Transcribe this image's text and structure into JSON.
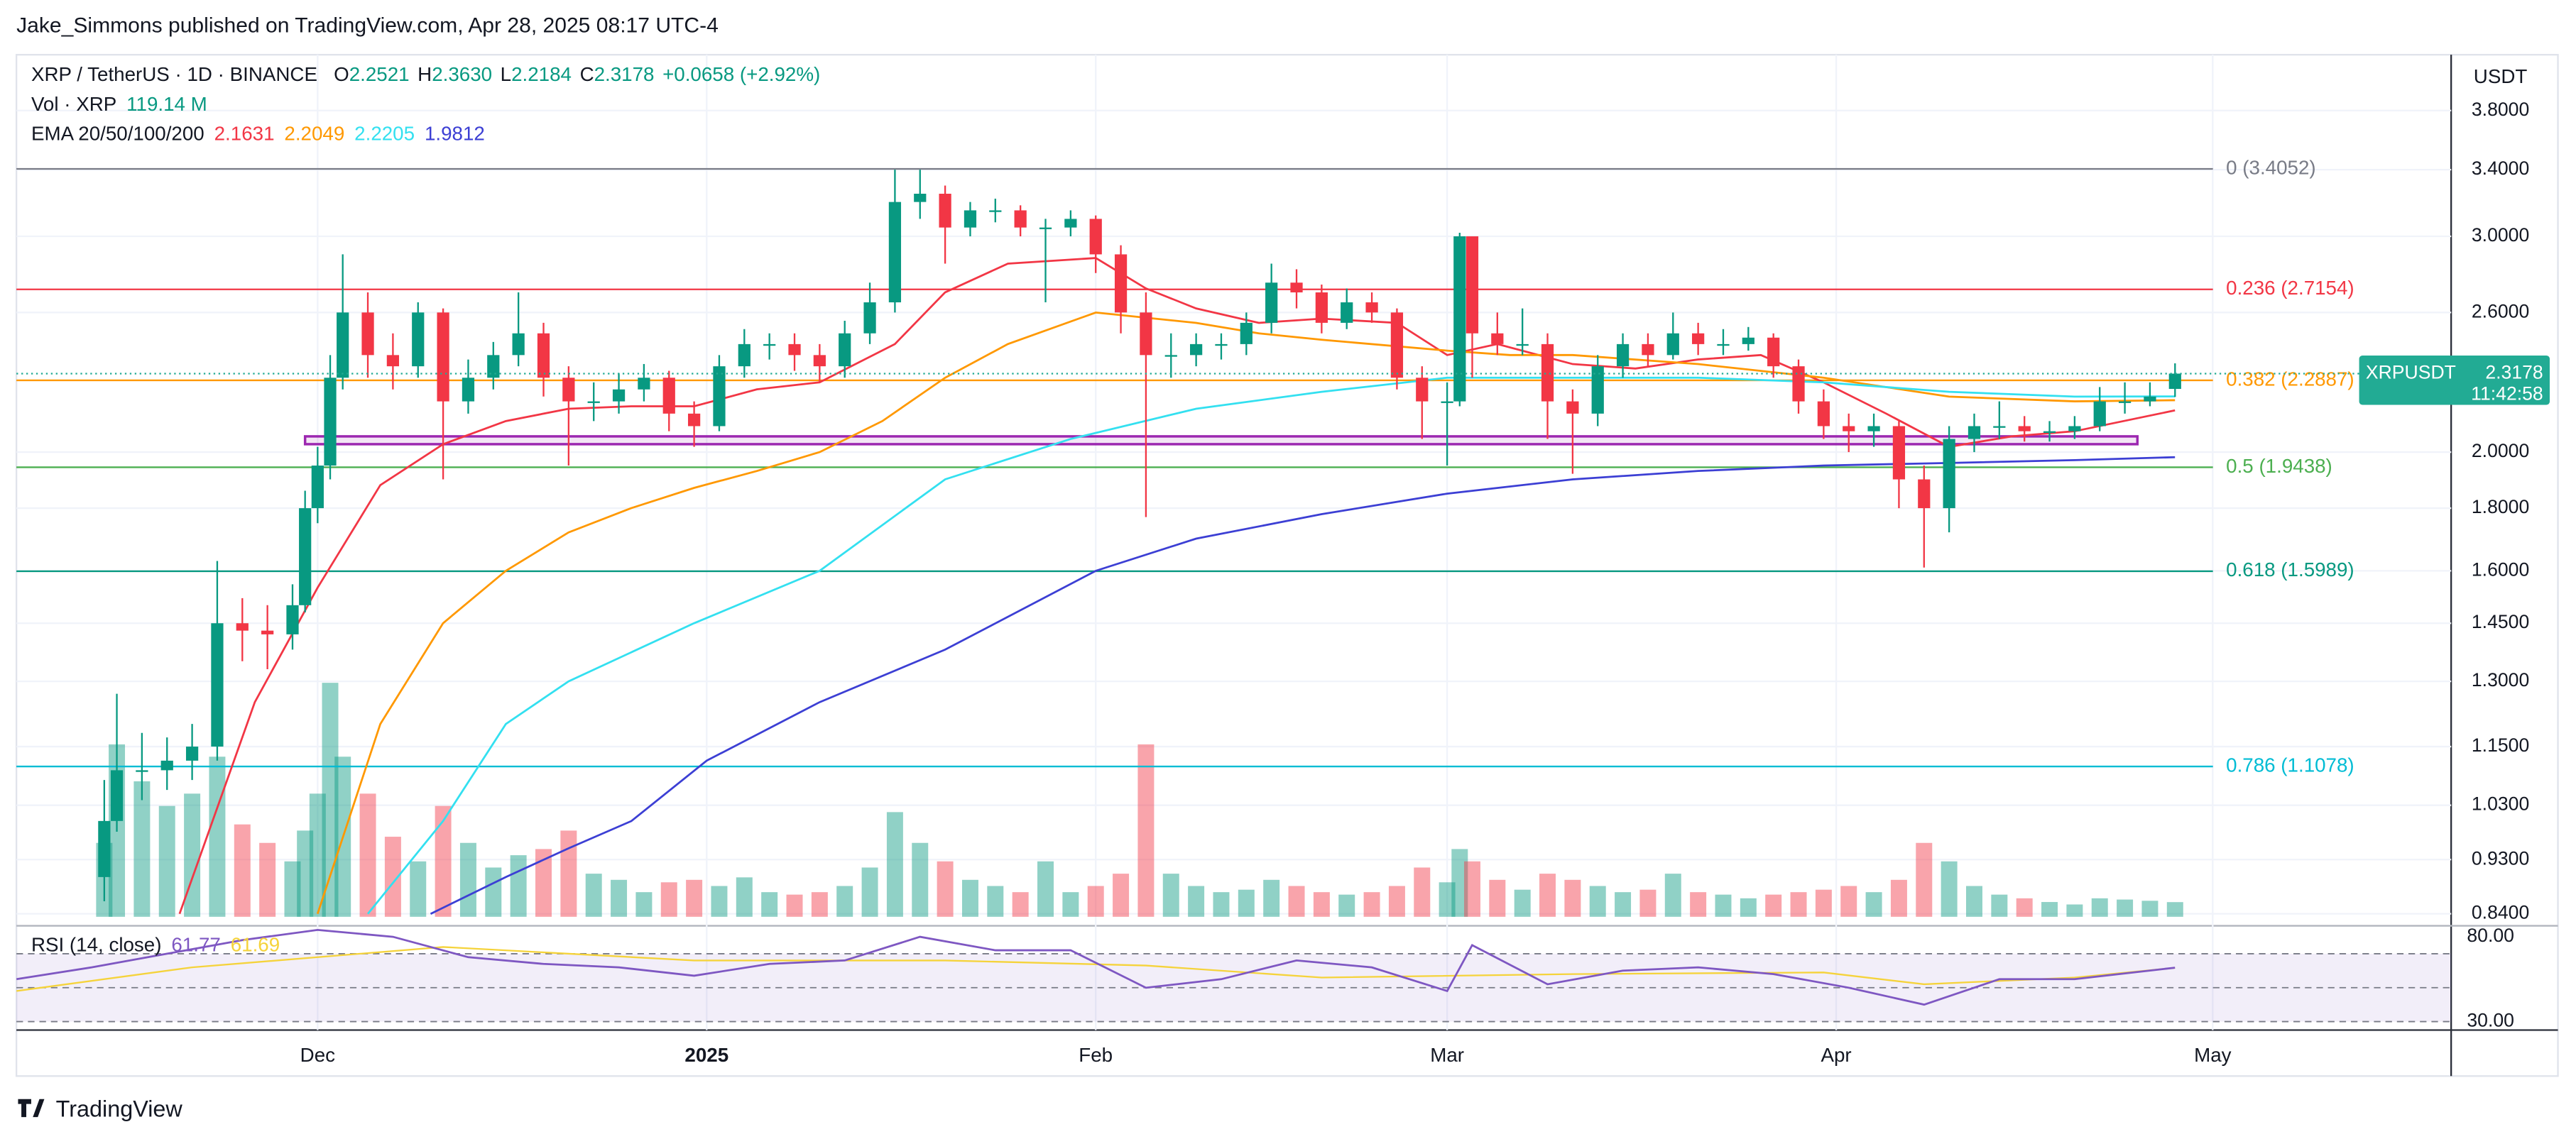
{
  "chart_data": {
    "type": "candlestick",
    "header": "Jake_Simmons published on TradingView.com, Apr 28, 2025 08:17 UTC-4",
    "symbol": "XRP / TetherUS · 1D · BINANCE",
    "ohlc_legend": [
      {
        "label": "O",
        "value": "2.2521"
      },
      {
        "label": "H",
        "value": "2.3630"
      },
      {
        "label": "L",
        "value": "2.2184"
      },
      {
        "label": "C",
        "value": "2.3178"
      }
    ],
    "change": "+0.0658 (+2.92%)",
    "volume_legend": {
      "label": "Vol · XRP",
      "value": "119.14 M"
    },
    "currency": "USDT",
    "logo": "TradingView",
    "up_color": "#089981",
    "down_color": "#f23645",
    "log_scale": true,
    "grid": true,
    "xlim": [
      6,
      200
    ],
    "xticks": [
      {
        "value": 30,
        "label": "Dec"
      },
      {
        "value": 61,
        "label": "2025"
      },
      {
        "value": 92,
        "label": "Feb"
      },
      {
        "value": 120,
        "label": "Mar"
      },
      {
        "value": 151,
        "label": "Apr"
      },
      {
        "value": 181,
        "label": "May"
      }
    ],
    "ylim": [
      0.825,
      4.22
    ],
    "yticks": [
      {
        "value": 0.84,
        "label": "0.8400"
      },
      {
        "value": 0.93,
        "label": "0.9300"
      },
      {
        "value": 1.03,
        "label": "1.0300"
      },
      {
        "value": 1.15,
        "label": "1.1500"
      },
      {
        "value": 1.3,
        "label": "1.3000"
      },
      {
        "value": 1.45,
        "label": "1.4500"
      },
      {
        "value": 1.6,
        "label": "1.6000"
      },
      {
        "value": 1.8,
        "label": "1.8000"
      },
      {
        "value": 2,
        "label": "2.0000"
      },
      {
        "value": 2.6,
        "label": "2.6000"
      },
      {
        "value": 3,
        "label": "3.0000"
      },
      {
        "value": 3.4,
        "label": "3.4000"
      },
      {
        "value": 3.8,
        "label": "3.8000"
      }
    ],
    "x": [
      13,
      14,
      16,
      18,
      20,
      22,
      24,
      26,
      28,
      29,
      30,
      31,
      32,
      34,
      36,
      38,
      40,
      42,
      44,
      46,
      48,
      50,
      52,
      54,
      56,
      58,
      60,
      62,
      64,
      66,
      68,
      70,
      72,
      74,
      76,
      78,
      80,
      82,
      84,
      86,
      88,
      90,
      92,
      94,
      96,
      98,
      100,
      102,
      104,
      106,
      108,
      110,
      112,
      114,
      116,
      118,
      120,
      121,
      122,
      124,
      126,
      128,
      130,
      132,
      134,
      136,
      138,
      140,
      142,
      144,
      146,
      148,
      150,
      152,
      154,
      156,
      158,
      160,
      162,
      164,
      166,
      168,
      170,
      172,
      174,
      176,
      178
    ],
    "open": [
      0.9,
      1.0,
      1.1,
      1.1,
      1.12,
      1.15,
      1.45,
      1.43,
      1.42,
      1.5,
      1.8,
      1.95,
      2.3,
      2.6,
      2.4,
      2.35,
      2.6,
      2.2,
      2.3,
      2.4,
      2.5,
      2.3,
      2.2,
      2.2,
      2.25,
      2.3,
      2.15,
      2.1,
      2.35,
      2.45,
      2.45,
      2.4,
      2.35,
      2.5,
      2.65,
      3.2,
      3.25,
      3.05,
      3.15,
      3.15,
      3.05,
      3.05,
      3.1,
      2.9,
      2.6,
      2.4,
      2.4,
      2.45,
      2.45,
      2.55,
      2.75,
      2.7,
      2.55,
      2.65,
      2.6,
      2.3,
      2.2,
      2.2,
      3.0,
      2.5,
      2.45,
      2.45,
      2.2,
      2.15,
      2.35,
      2.45,
      2.4,
      2.5,
      2.45,
      2.45,
      2.48,
      2.35,
      2.2,
      2.1,
      2.08,
      2.1,
      1.9,
      1.8,
      2.05,
      2.1,
      2.1,
      2.08,
      2.08,
      2.1,
      2.2,
      2.2,
      2.2521
    ],
    "high": [
      1.08,
      1.27,
      1.18,
      1.17,
      1.2,
      1.63,
      1.52,
      1.5,
      1.56,
      1.86,
      2.02,
      2.4,
      2.9,
      2.7,
      2.5,
      2.65,
      2.62,
      2.38,
      2.46,
      2.7,
      2.55,
      2.35,
      2.28,
      2.32,
      2.36,
      2.33,
      2.2,
      2.4,
      2.52,
      2.5,
      2.5,
      2.45,
      2.56,
      2.75,
      3.4,
      3.4,
      3.3,
      3.2,
      3.22,
      3.18,
      3.1,
      3.15,
      3.12,
      2.95,
      2.7,
      2.5,
      2.5,
      2.5,
      2.6,
      2.85,
      2.82,
      2.74,
      2.72,
      2.7,
      2.62,
      2.35,
      2.28,
      3.02,
      3.0,
      2.6,
      2.62,
      2.5,
      2.25,
      2.4,
      2.5,
      2.5,
      2.6,
      2.55,
      2.52,
      2.53,
      2.5,
      2.38,
      2.25,
      2.15,
      2.15,
      2.12,
      1.95,
      2.1,
      2.15,
      2.2,
      2.14,
      2.12,
      2.14,
      2.26,
      2.28,
      2.28,
      2.363
    ],
    "low": [
      0.86,
      0.98,
      1.04,
      1.06,
      1.08,
      1.12,
      1.35,
      1.33,
      1.38,
      1.48,
      1.75,
      1.9,
      2.25,
      2.3,
      2.25,
      2.3,
      1.9,
      2.15,
      2.25,
      2.35,
      2.22,
      1.95,
      2.12,
      2.15,
      2.2,
      2.08,
      2.02,
      2.08,
      2.3,
      2.38,
      2.33,
      2.28,
      2.3,
      2.45,
      2.6,
      3.1,
      2.85,
      3.0,
      3.08,
      3.0,
      2.65,
      3.0,
      2.8,
      2.5,
      1.77,
      2.3,
      2.35,
      2.38,
      2.4,
      2.5,
      2.62,
      2.5,
      2.52,
      2.55,
      2.25,
      2.05,
      1.95,
      2.18,
      2.3,
      2.4,
      2.4,
      2.05,
      1.92,
      2.1,
      2.3,
      2.35,
      2.38,
      2.4,
      2.4,
      2.42,
      2.3,
      2.15,
      2.05,
      2.0,
      2.02,
      1.8,
      1.61,
      1.72,
      2.0,
      2.05,
      2.04,
      2.04,
      2.05,
      2.08,
      2.15,
      2.18,
      2.2184
    ],
    "close": [
      1.0,
      1.1,
      1.1,
      1.12,
      1.15,
      1.45,
      1.43,
      1.42,
      1.5,
      1.8,
      1.95,
      2.3,
      2.6,
      2.4,
      2.35,
      2.6,
      2.2,
      2.3,
      2.4,
      2.5,
      2.3,
      2.2,
      2.2,
      2.25,
      2.3,
      2.15,
      2.1,
      2.35,
      2.45,
      2.45,
      2.4,
      2.35,
      2.5,
      2.65,
      3.2,
      3.25,
      3.05,
      3.15,
      3.15,
      3.05,
      3.05,
      3.1,
      2.9,
      2.6,
      2.4,
      2.4,
      2.45,
      2.45,
      2.55,
      2.75,
      2.7,
      2.55,
      2.65,
      2.6,
      2.3,
      2.2,
      2.2,
      3.0,
      2.5,
      2.45,
      2.45,
      2.2,
      2.15,
      2.35,
      2.45,
      2.4,
      2.5,
      2.45,
      2.45,
      2.48,
      2.35,
      2.2,
      2.1,
      2.08,
      2.1,
      1.9,
      1.8,
      2.05,
      2.1,
      2.1,
      2.08,
      2.08,
      2.1,
      2.2,
      2.2,
      2.22,
      2.3178
    ],
    "volume": [
      600,
      1400,
      1100,
      900,
      1000,
      1300,
      750,
      600,
      450,
      700,
      1000,
      1900,
      1300,
      1000,
      650,
      450,
      900,
      600,
      400,
      500,
      550,
      700,
      350,
      300,
      200,
      280,
      300,
      250,
      320,
      200,
      180,
      200,
      250,
      400,
      850,
      600,
      450,
      300,
      250,
      200,
      450,
      200,
      250,
      350,
      1400,
      350,
      250,
      200,
      220,
      300,
      250,
      200,
      180,
      200,
      250,
      400,
      280,
      550,
      450,
      300,
      220,
      350,
      300,
      250,
      200,
      220,
      350,
      200,
      180,
      150,
      180,
      200,
      220,
      250,
      200,
      300,
      600,
      450,
      250,
      180,
      150,
      120,
      100,
      150,
      140,
      130,
      119.14
    ],
    "volume_lim": [
      0,
      2000
    ],
    "emas": {
      "label": "EMA 20/50/100/200",
      "series": [
        {
          "color": "#f23645",
          "value_label": "2.1631",
          "x": [
            19,
            25,
            30,
            35,
            40,
            45,
            50,
            55,
            60,
            65,
            70,
            76,
            80,
            85,
            92,
            96,
            100,
            105,
            110,
            116,
            120,
            124,
            130,
            135,
            140,
            145,
            150,
            155,
            160,
            165,
            170,
            178
          ],
          "values": [
            0.84,
            1.25,
            1.55,
            1.88,
            2.03,
            2.12,
            2.17,
            2.18,
            2.18,
            2.25,
            2.28,
            2.45,
            2.7,
            2.85,
            2.88,
            2.72,
            2.62,
            2.55,
            2.57,
            2.55,
            2.4,
            2.45,
            2.36,
            2.34,
            2.38,
            2.4,
            2.28,
            2.15,
            2.02,
            2.06,
            2.08,
            2.1631
          ]
        },
        {
          "color": "#ff9800",
          "value_label": "2.2049",
          "x": [
            30,
            35,
            40,
            45,
            50,
            55,
            60,
            65,
            70,
            75,
            80,
            85,
            92,
            100,
            105,
            110,
            120,
            125,
            130,
            140,
            150,
            160,
            170,
            178
          ],
          "values": [
            0.84,
            1.2,
            1.45,
            1.6,
            1.72,
            1.8,
            1.87,
            1.93,
            2.0,
            2.12,
            2.3,
            2.45,
            2.6,
            2.55,
            2.5,
            2.47,
            2.42,
            2.4,
            2.4,
            2.36,
            2.3,
            2.22,
            2.2,
            2.2049
          ]
        },
        {
          "color": "#33e0f0",
          "value_label": "2.2205",
          "x": [
            34,
            40,
            45,
            50,
            60,
            70,
            80,
            90,
            100,
            110,
            120,
            130,
            140,
            150,
            160,
            170,
            178
          ],
          "values": [
            0.84,
            1.0,
            1.2,
            1.3,
            1.45,
            1.6,
            1.9,
            2.05,
            2.17,
            2.24,
            2.3,
            2.3,
            2.3,
            2.28,
            2.24,
            2.22,
            2.2205
          ]
        },
        {
          "color": "#3c3fd4",
          "value_label": "1.9812",
          "x": [
            39,
            45,
            50,
            55,
            61,
            70,
            80,
            92,
            100,
            110,
            120,
            130,
            140,
            150,
            160,
            170,
            178
          ],
          "values": [
            0.84,
            0.9,
            0.95,
            1.0,
            1.12,
            1.25,
            1.38,
            1.6,
            1.7,
            1.78,
            1.85,
            1.9,
            1.93,
            1.95,
            1.96,
            1.97,
            1.9812
          ]
        }
      ]
    },
    "fib": [
      {
        "label": "0 (3.4052)",
        "value": 3.4052,
        "color": "#787b86"
      },
      {
        "label": "0.236 (2.7154)",
        "value": 2.7154,
        "color": "#f23645"
      },
      {
        "label": "0.382 (2.2887)",
        "value": 2.2887,
        "color": "#ff9800"
      },
      {
        "label": "0.5 (1.9438)",
        "value": 1.9438,
        "color": "#4caf50"
      },
      {
        "label": "0.618 (1.5989)",
        "value": 1.5989,
        "color": "#089981"
      },
      {
        "label": "0.786 (1.1078)",
        "value": 1.1078,
        "color": "#00bcd4"
      }
    ],
    "zone": {
      "x": [
        29,
        175
      ],
      "y": [
        2.03,
        2.06
      ],
      "color": "#9c27b0"
    },
    "price_tag": {
      "symbol": "XRPUSDT",
      "price": 2.3178,
      "countdown": "11:42:58",
      "color": "#22ab94"
    },
    "rsi": {
      "label": "RSI (14, close)",
      "value_label": "61.77",
      "ma_label": "61.69",
      "color": "#7e57c2",
      "ma_color": "#f5d33b",
      "ylim": [
        25,
        85
      ],
      "yticks": [
        {
          "value": 80,
          "label": "80.00"
        },
        {
          "value": 30,
          "label": "30.00"
        }
      ],
      "bands": [
        70,
        50,
        30
      ],
      "x": [
        6,
        12,
        18,
        24,
        30,
        36,
        42,
        48,
        54,
        60,
        66,
        72,
        78,
        84,
        90,
        96,
        102,
        108,
        114,
        120,
        122,
        128,
        134,
        140,
        146,
        152,
        158,
        164,
        170,
        178
      ],
      "values": [
        55,
        62,
        70,
        78,
        84,
        80,
        68,
        64,
        62,
        57,
        64,
        66,
        80,
        72,
        72,
        50,
        55,
        66,
        62,
        48,
        75,
        52,
        60,
        62,
        58,
        50,
        40,
        55,
        55,
        61.77
      ],
      "ma_x": [
        6,
        20,
        40,
        60,
        80,
        96,
        110,
        130,
        150,
        158,
        170,
        178
      ],
      "ma_values": [
        48,
        62,
        74,
        66,
        66,
        63,
        56,
        58,
        59,
        52,
        56,
        61.69
      ]
    }
  }
}
